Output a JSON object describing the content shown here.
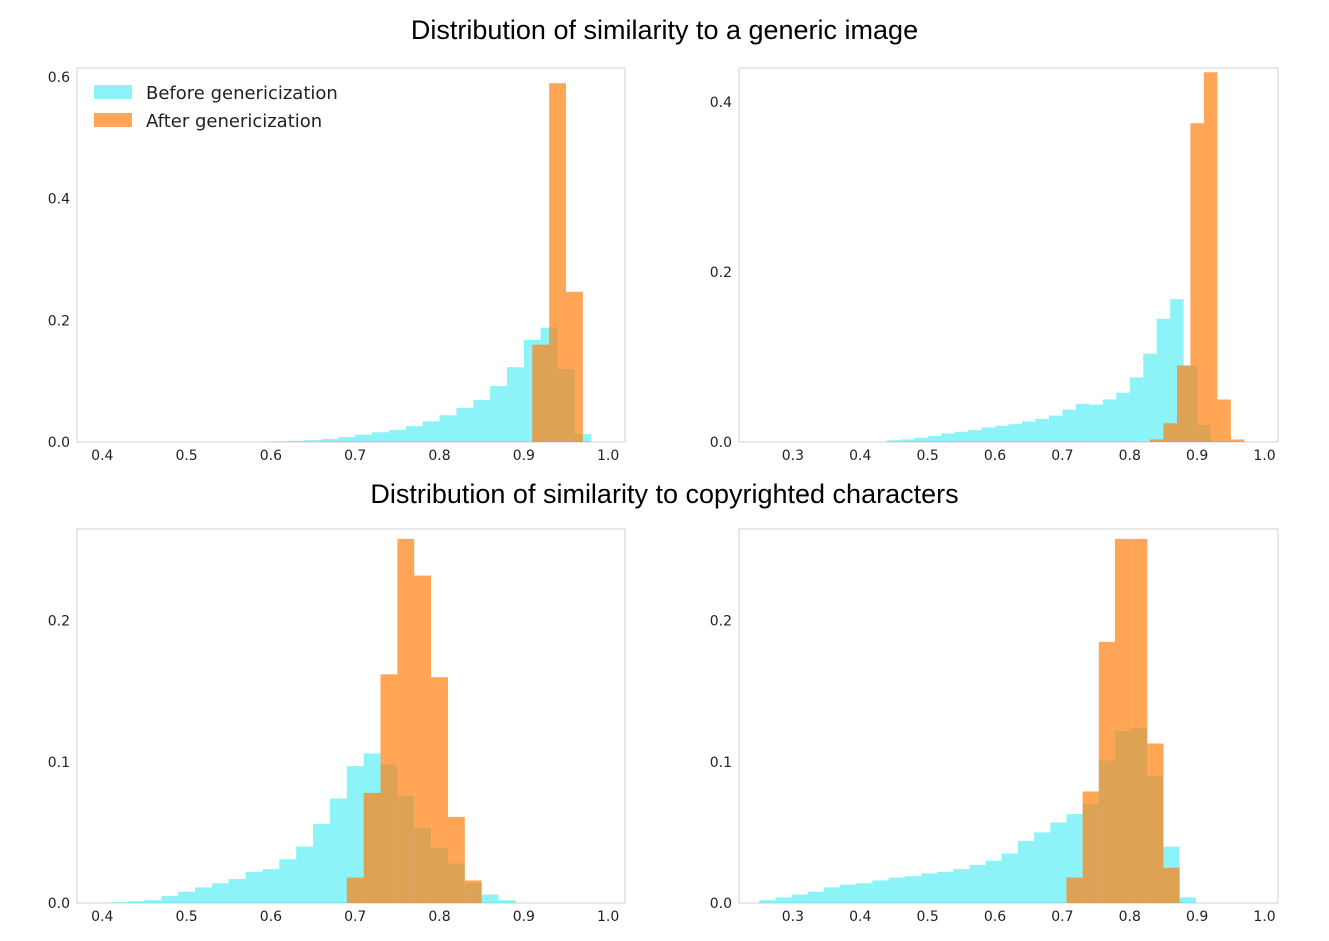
{
  "section_titles": {
    "top": "Distribution of similarity to a generic image",
    "bottom": "Distribution of similarity to copyrighted characters"
  },
  "colors": {
    "before": "#00e5f2",
    "after": "#ff7f0e",
    "axis": "#d0d0d0"
  },
  "legend": [
    {
      "label": "Before genericization",
      "series": "before"
    },
    {
      "label": "After genericization",
      "series": "after"
    }
  ],
  "chart_data": [
    {
      "type": "bar",
      "title": "Distribution of similarity to a generic image",
      "panel": "top-left",
      "xlim": [
        0.37,
        1.02
      ],
      "ylim": [
        0,
        0.615
      ],
      "xticks": [
        0.4,
        0.5,
        0.6,
        0.7,
        0.8,
        0.9,
        1.0
      ],
      "yticks": [
        0.0,
        0.2,
        0.4,
        0.6
      ],
      "xtick_labels": [
        "0.4",
        "0.5",
        "0.6",
        "0.7",
        "0.8",
        "0.9",
        "1.0"
      ],
      "ytick_labels": [
        "0.0",
        "0.2",
        "0.4",
        "0.6"
      ],
      "legend_position": "top-left",
      "series": [
        {
          "name": "Before genericization",
          "key": "before",
          "bin_start": 0.6,
          "bin_width": 0.02,
          "values": [
            0.001,
            0.002,
            0.003,
            0.005,
            0.008,
            0.012,
            0.016,
            0.02,
            0.026,
            0.034,
            0.044,
            0.056,
            0.069,
            0.092,
            0.123,
            0.168,
            0.188,
            0.12,
            0.013
          ]
        },
        {
          "name": "After genericization",
          "key": "after",
          "bin_start": 0.91,
          "bin_width": 0.02,
          "values": [
            0.16,
            0.59,
            0.247
          ]
        }
      ]
    },
    {
      "type": "bar",
      "panel": "top-right",
      "xlim": [
        0.22,
        1.02
      ],
      "ylim": [
        0,
        0.44
      ],
      "xticks": [
        0.3,
        0.4,
        0.5,
        0.6,
        0.7,
        0.8,
        0.9,
        1.0
      ],
      "yticks": [
        0.0,
        0.2,
        0.4
      ],
      "xtick_labels": [
        "0.3",
        "0.4",
        "0.5",
        "0.6",
        "0.7",
        "0.8",
        "0.9",
        "1.0"
      ],
      "ytick_labels": [
        "0.0",
        "0.2",
        "0.4"
      ],
      "series": [
        {
          "name": "Before genericization",
          "key": "before",
          "bin_start": 0.44,
          "bin_width": 0.02,
          "values": [
            0.002,
            0.003,
            0.005,
            0.007,
            0.01,
            0.012,
            0.014,
            0.017,
            0.019,
            0.021,
            0.024,
            0.027,
            0.031,
            0.038,
            0.045,
            0.044,
            0.05,
            0.058,
            0.076,
            0.104,
            0.145,
            0.168,
            0.09,
            0.02
          ]
        },
        {
          "name": "After genericization",
          "key": "after",
          "bin_start": 0.83,
          "bin_width": 0.02,
          "values": [
            0.003,
            0.022,
            0.09,
            0.375,
            0.435,
            0.05,
            0.003
          ]
        }
      ]
    },
    {
      "type": "bar",
      "panel": "bottom-left",
      "xlim": [
        0.37,
        1.02
      ],
      "ylim": [
        0,
        0.265
      ],
      "xticks": [
        0.4,
        0.5,
        0.6,
        0.7,
        0.8,
        0.9,
        1.0
      ],
      "yticks": [
        0.0,
        0.1,
        0.2
      ],
      "xtick_labels": [
        "0.4",
        "0.5",
        "0.6",
        "0.7",
        "0.8",
        "0.9",
        "1.0"
      ],
      "ytick_labels": [
        "0.0",
        "0.1",
        "0.2"
      ],
      "series": [
        {
          "name": "Before genericization",
          "key": "before",
          "bin_start": 0.41,
          "bin_width": 0.02,
          "values": [
            0.0005,
            0.0012,
            0.002,
            0.005,
            0.008,
            0.011,
            0.014,
            0.017,
            0.022,
            0.024,
            0.031,
            0.04,
            0.056,
            0.074,
            0.097,
            0.106,
            0.098,
            0.076,
            0.053,
            0.039,
            0.028,
            0.014,
            0.006,
            0.002
          ]
        },
        {
          "name": "After genericization",
          "key": "after",
          "bin_start": 0.69,
          "bin_width": 0.02,
          "values": [
            0.018,
            0.078,
            0.162,
            0.258,
            0.232,
            0.16,
            0.061,
            0.016
          ]
        }
      ]
    },
    {
      "type": "bar",
      "panel": "bottom-right",
      "xlim": [
        0.22,
        1.02
      ],
      "ylim": [
        0,
        0.265
      ],
      "xticks": [
        0.3,
        0.4,
        0.5,
        0.6,
        0.7,
        0.8,
        0.9,
        1.0
      ],
      "yticks": [
        0.0,
        0.1,
        0.2
      ],
      "xtick_labels": [
        "0.3",
        "0.4",
        "0.5",
        "0.6",
        "0.7",
        "0.8",
        "0.9",
        "1.0"
      ],
      "ytick_labels": [
        "0.0",
        "0.1",
        "0.2"
      ],
      "series": [
        {
          "name": "Before genericization",
          "key": "before",
          "bin_start": 0.25,
          "bin_width": 0.024,
          "values": [
            0.002,
            0.004,
            0.006,
            0.008,
            0.011,
            0.013,
            0.014,
            0.016,
            0.018,
            0.019,
            0.021,
            0.022,
            0.024,
            0.027,
            0.03,
            0.035,
            0.044,
            0.05,
            0.057,
            0.063,
            0.07,
            0.101,
            0.122,
            0.124,
            0.09,
            0.04,
            0.004
          ]
        },
        {
          "name": "After genericization",
          "key": "after",
          "bin_start": 0.706,
          "bin_width": 0.024,
          "values": [
            0.018,
            0.079,
            0.185,
            0.258,
            0.258,
            0.113,
            0.025
          ]
        }
      ]
    }
  ]
}
